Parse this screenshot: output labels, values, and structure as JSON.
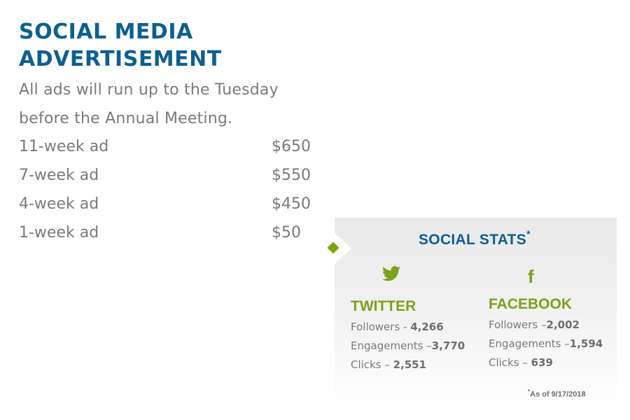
{
  "header": {
    "title_line1": "SOCIAL MEDIA",
    "title_line2": "ADVERTISEMENT"
  },
  "intro": {
    "line1": "All ads will run up to the Tuesday",
    "line2": "before the Annual Meeting."
  },
  "pricing": [
    {
      "duration": "11-week ad",
      "price": "$650"
    },
    {
      "duration": "7-week ad",
      "price": "$550"
    },
    {
      "duration": "4-week ad",
      "price": "$450"
    },
    {
      "duration": "1-week ad",
      "price": "$50"
    }
  ],
  "stats": {
    "title": "SOCIAL STATS",
    "title_mark": "*",
    "twitter": {
      "icon": "twitter-bird-icon",
      "name": "TWITTER",
      "lines": [
        {
          "label": "Followers - ",
          "value": "4,266"
        },
        {
          "label": "Engagements –",
          "value": "3,770"
        },
        {
          "label": "Clicks – ",
          "value": "2,551"
        }
      ]
    },
    "facebook": {
      "icon": "facebook-f-icon",
      "glyph": "f",
      "name": "FACEBOOK",
      "lines": [
        {
          "label": "Followers –",
          "value": "2,002"
        },
        {
          "label": "Engagements –",
          "value": "1,594"
        },
        {
          "label": "Clicks – ",
          "value": "639"
        }
      ]
    },
    "footnote_mark": "*",
    "footnote": "As of 9/17/2018"
  },
  "colors": {
    "title_blue": "#0e5f8e",
    "accent_green": "#7ba21a",
    "body_gray": "#7a7a7a"
  }
}
